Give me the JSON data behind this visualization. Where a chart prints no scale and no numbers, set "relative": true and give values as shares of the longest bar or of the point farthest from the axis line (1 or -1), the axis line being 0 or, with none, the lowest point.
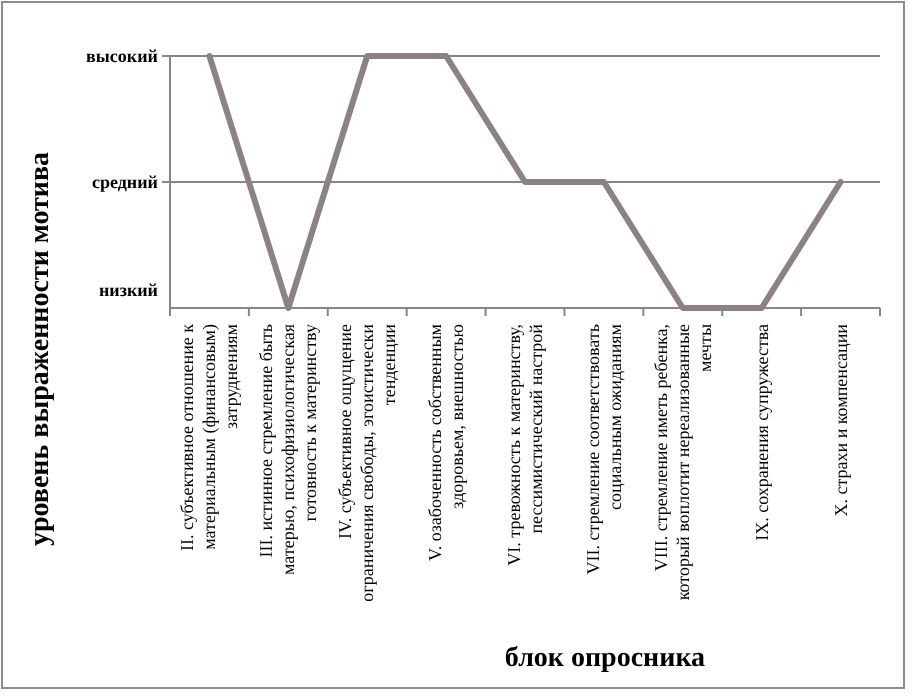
{
  "chart_data": {
    "type": "line",
    "xlabel": "блок опросника",
    "ylabel": "уровень выраженности мотива",
    "categories": [
      "II. субъективное отношение к материальным (финансовым) затруднениям",
      "III. истинное стремление быть матерью, психофизиологическая готовность к материнству",
      "IV. субъективное ощущение ограничения свободы, эгоистически тенденции",
      "V. озабоченность собственным здоровьем, внешностью",
      "VI. тревожность к материнству, пессимистический настрой",
      "VII. стремление соответствовать социальным ожиданиям",
      "VIII. стремление иметь ребенка, который воплотит нереализованные мечты",
      "IX. сохранения супружества",
      "X. страхи и компенсации"
    ],
    "series": [
      {
        "color": "#8c8282",
        "values": [
          1,
          0,
          1,
          1,
          0.5,
          0.5,
          0,
          0,
          0.5
        ]
      }
    ],
    "relative": true,
    "ref_lines": [
      {
        "axis": "y",
        "value": 0.5,
        "label": "средний"
      },
      {
        "axis": "y",
        "value": 1,
        "label": "высокий"
      }
    ],
    "annotations": [
      "низкий"
    ],
    "marker": "none",
    "line_style": "solid"
  }
}
